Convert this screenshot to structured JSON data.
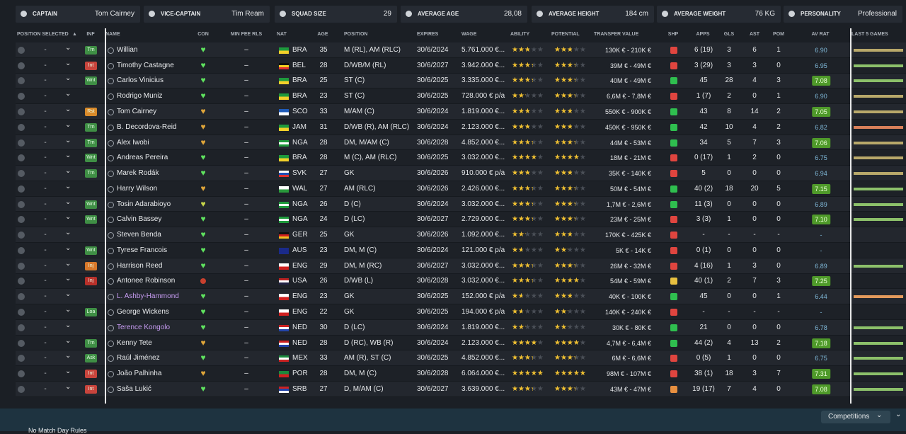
{
  "summary": [
    {
      "label": "CAPTAIN",
      "value": "Tom Cairney"
    },
    {
      "label": "VICE-CAPTAIN",
      "value": "Tim Ream"
    },
    {
      "label": "SQUAD SIZE",
      "value": "29"
    },
    {
      "label": "AVERAGE AGE",
      "value": "28,08"
    },
    {
      "label": "AVERAGE HEIGHT",
      "value": "184 cm"
    },
    {
      "label": "AVERAGE WEIGHT",
      "value": "76 KG"
    },
    {
      "label": "PERSONALITY",
      "value": "Professional"
    }
  ],
  "headers": [
    "POSITION SELECTED",
    "INF",
    "NAME",
    "CON",
    "MIN FEE RLS",
    "NAT",
    "AGE",
    "POSITION",
    "EXPIRES",
    "WAGE",
    "ABILITY",
    "POTENTIAL",
    "TRANSFER VALUE",
    "SHP",
    "APPS",
    "GLS",
    "AST",
    "POM",
    "AV RAT",
    "LAST 5 GAMES"
  ],
  "rows": [
    {
      "selected": "-",
      "inf": {
        "text": "Trn",
        "color": "#3f8f45"
      },
      "name": "Willian",
      "con": "#5fe35f",
      "min_fee": "–",
      "nat": "BRA",
      "age": 35,
      "position": "M (RL), AM (RLC)",
      "expires": "30/6/2024",
      "wage": "5.761.000 €...",
      "ability": 2.5,
      "potential": 2.5,
      "transfer_value": "130K € - 210K €",
      "shp": "#e0453f",
      "apps": "6 (19)",
      "gls": 3,
      "ast": 6,
      "pom": 1,
      "av_rat": "6.90",
      "form": "#b8a86a"
    },
    {
      "selected": "-",
      "inf": {
        "text": "Int",
        "color": "#c8443c"
      },
      "name": "Timothy Castagne",
      "con": "#5fe35f",
      "min_fee": "–",
      "nat": "BEL",
      "age": 28,
      "position": "D/WB/M (RL)",
      "expires": "30/6/2027",
      "wage": "3.942.000 €...",
      "ability": 3,
      "potential": 3,
      "transfer_value": "39M € - 49M €",
      "shp": "#e0453f",
      "apps": "3 (29)",
      "gls": 3,
      "ast": 3,
      "pom": 0,
      "av_rat": "6.95",
      "form": "#8cc06a"
    },
    {
      "selected": "-",
      "inf": {
        "text": "Wnt",
        "color": "#3f8f45"
      },
      "name": "Carlos Vinicius",
      "con": "#5fe35f",
      "min_fee": "–",
      "nat": "BRA",
      "age": 25,
      "position": "ST (C)",
      "expires": "30/6/2025",
      "wage": "3.335.000 €...",
      "ability": 3,
      "potential": 3,
      "transfer_value": "40M € - 49M €",
      "shp": "#2fbf4f",
      "apps": "45",
      "gls": 28,
      "ast": 4,
      "pom": 3,
      "av_rat": "7.08",
      "form": "#8cc06a"
    },
    {
      "selected": "-",
      "inf": null,
      "name": "Rodrigo Muniz",
      "con": "#5fe35f",
      "min_fee": "–",
      "nat": "BRA",
      "age": 23,
      "position": "ST (C)",
      "expires": "30/6/2025",
      "wage": "728.000 € p/a",
      "ability": 2,
      "potential": 3,
      "transfer_value": "6,6M € - 7,8M €",
      "shp": "#e0453f",
      "apps": "1 (7)",
      "gls": 2,
      "ast": 0,
      "pom": 1,
      "av_rat": "6.90",
      "form": "#b8a86a"
    },
    {
      "selected": "-",
      "inf": {
        "text": "Rst",
        "color": "#d88a2a"
      },
      "name": "Tom Cairney",
      "con": "#e0a63a",
      "min_fee": "–",
      "nat": "SCO",
      "age": 33,
      "position": "M/AM (C)",
      "expires": "30/6/2024",
      "wage": "1.819.000 €...",
      "ability": 2.5,
      "potential": 2.5,
      "transfer_value": "550K € - 900K €",
      "shp": "#2fbf4f",
      "apps": "43",
      "gls": 8,
      "ast": 14,
      "pom": 2,
      "av_rat": "7.05",
      "form": "#b8a86a"
    },
    {
      "selected": "-",
      "inf": {
        "text": "Trn",
        "color": "#3f8f45"
      },
      "name": "B. Decordova-Reid",
      "con": "#e0a63a",
      "min_fee": "–",
      "nat": "JAM",
      "age": 31,
      "position": "D/WB (R), AM (RLC)",
      "expires": "30/6/2024",
      "wage": "2.123.000 €...",
      "ability": 2.5,
      "potential": 2.5,
      "transfer_value": "450K € - 950K €",
      "shp": "#2fbf4f",
      "apps": "42",
      "gls": 10,
      "ast": 4,
      "pom": 2,
      "av_rat": "6.82",
      "form": "#d9805a"
    },
    {
      "selected": "-",
      "inf": {
        "text": "Trn",
        "color": "#3f8f45"
      },
      "name": "Alex Iwobi",
      "con": "#e0a63a",
      "min_fee": "–",
      "nat": "NGA",
      "age": 28,
      "position": "DM, M/AM (C)",
      "expires": "30/6/2028",
      "wage": "4.852.000 €...",
      "ability": 3,
      "potential": 3,
      "transfer_value": "44M € - 53M €",
      "shp": "#2fbf4f",
      "apps": "34",
      "gls": 5,
      "ast": 7,
      "pom": 3,
      "av_rat": "7.06",
      "form": "#b8a86a"
    },
    {
      "selected": "-",
      "inf": {
        "text": "Wnt",
        "color": "#3f8f45"
      },
      "name": "Andreas Pereira",
      "con": "#5fe35f",
      "min_fee": "–",
      "nat": "BRA",
      "age": 28,
      "position": "M (C), AM (RLC)",
      "expires": "30/6/2025",
      "wage": "3.032.000 €...",
      "ability": 3.5,
      "potential": 3.5,
      "transfer_value": "18M € - 21M €",
      "shp": "#e0453f",
      "apps": "0 (17)",
      "gls": 1,
      "ast": 2,
      "pom": 0,
      "av_rat": "6.75",
      "form": "#b8a86a"
    },
    {
      "selected": "-",
      "inf": {
        "text": "Trn",
        "color": "#3f8f45"
      },
      "name": "Marek Rodák",
      "con": "#5fe35f",
      "min_fee": "–",
      "nat": "SVK",
      "age": 27,
      "position": "GK",
      "expires": "30/6/2026",
      "wage": "910.000 € p/a",
      "ability": 2.5,
      "potential": 2.5,
      "transfer_value": "35K € - 140K €",
      "shp": "#e0453f",
      "apps": "5",
      "gls": 0,
      "ast": 0,
      "pom": 0,
      "av_rat": "6.94",
      "form": "#b8a86a"
    },
    {
      "selected": "-",
      "inf": null,
      "name": "Harry Wilson",
      "con": "#e0a63a",
      "min_fee": "–",
      "nat": "WAL",
      "age": 27,
      "position": "AM (RLC)",
      "expires": "30/6/2026",
      "wage": "2.426.000 €...",
      "ability": 3,
      "potential": 3,
      "transfer_value": "50M € - 54M €",
      "shp": "#2fbf4f",
      "apps": "40 (2)",
      "gls": 18,
      "ast": 20,
      "pom": 5,
      "av_rat": "7.15",
      "form": "#8cc06a"
    },
    {
      "selected": "-",
      "inf": {
        "text": "Wnt",
        "color": "#3f8f45"
      },
      "name": "Tosin Adarabioyo",
      "con": "#c9d84a",
      "min_fee": "–",
      "nat": "NGA",
      "age": 26,
      "position": "D (C)",
      "expires": "30/6/2024",
      "wage": "3.032.000 €...",
      "ability": 3,
      "potential": 3,
      "transfer_value": "1,7M € - 2,6M €",
      "shp": "#2fbf4f",
      "apps": "11 (3)",
      "gls": 0,
      "ast": 0,
      "pom": 0,
      "av_rat": "6.89",
      "form": "#8cc06a"
    },
    {
      "selected": "-",
      "inf": {
        "text": "Wnt",
        "color": "#3f8f45"
      },
      "name": "Calvin Bassey",
      "con": "#5fe35f",
      "min_fee": "–",
      "nat": "NGA",
      "age": 24,
      "position": "D (LC)",
      "expires": "30/6/2027",
      "wage": "2.729.000 €...",
      "ability": 3,
      "potential": 3,
      "transfer_value": "23M € - 25M €",
      "shp": "#e0453f",
      "apps": "3 (3)",
      "gls": 1,
      "ast": 0,
      "pom": 0,
      "av_rat": "7.10",
      "form": "#8cc06a"
    },
    {
      "selected": "-",
      "inf": null,
      "name": "Steven Benda",
      "con": "#5fe35f",
      "min_fee": "–",
      "nat": "GER",
      "age": 25,
      "position": "GK",
      "expires": "30/6/2026",
      "wage": "1.092.000 €...",
      "ability": 2,
      "potential": 2.5,
      "transfer_value": "170K € - 425K €",
      "shp": "#e0453f",
      "apps": "-",
      "gls": "-",
      "ast": "-",
      "pom": "-",
      "av_rat": "-",
      "form": null
    },
    {
      "selected": "-",
      "inf": {
        "text": "Wnt",
        "color": "#3f8f45"
      },
      "name": "Tyrese Francois",
      "con": "#5fe35f",
      "min_fee": "–",
      "nat": "AUS",
      "age": 23,
      "position": "DM, M (C)",
      "expires": "30/6/2024",
      "wage": "121.000 € p/a",
      "ability": 1.5,
      "potential": 2,
      "transfer_value": "5K € - 14K €",
      "shp": "#e0453f",
      "apps": "0 (1)",
      "gls": 0,
      "ast": 0,
      "pom": 0,
      "av_rat": "-",
      "form": null
    },
    {
      "selected": "-",
      "inf": {
        "text": "Inj",
        "color": "#d8782a"
      },
      "name": "Harrison Reed",
      "con": "#5fe35f",
      "min_fee": "–",
      "nat": "ENG",
      "age": 29,
      "position": "DM, M (RC)",
      "expires": "30/6/2027",
      "wage": "3.032.000 €...",
      "ability": 3,
      "potential": 3,
      "transfer_value": "26M € - 32M €",
      "shp": "#e0453f",
      "apps": "4 (16)",
      "gls": 1,
      "ast": 3,
      "pom": 0,
      "av_rat": "6.89",
      "form": "#8cc06a"
    },
    {
      "selected": "-",
      "inf": {
        "text": "Inj",
        "color": "#b8302a"
      },
      "name": "Antonee Robinson",
      "con": "#c8402e",
      "min_fee": "–",
      "nat": "USA",
      "age": 26,
      "position": "D/WB (L)",
      "expires": "30/6/2028",
      "wage": "3.032.000 €...",
      "ability": 3,
      "potential": 3.5,
      "transfer_value": "54M € - 59M €",
      "shp": "#e8c040",
      "apps": "40 (1)",
      "gls": 2,
      "ast": 7,
      "pom": 3,
      "av_rat": "7.25",
      "form": null
    },
    {
      "selected": "-",
      "inf": null,
      "name": "L. Ashby-Hammond",
      "name_color": "#c79cf2",
      "con": "#5fe35f",
      "min_fee": "–",
      "nat": "ENG",
      "age": 23,
      "position": "GK",
      "expires": "30/6/2025",
      "wage": "152.000 € p/a",
      "ability": 1.5,
      "potential": 2.5,
      "transfer_value": "40K € - 100K €",
      "shp": "#2fbf4f",
      "apps": "45",
      "gls": 0,
      "ast": 0,
      "pom": 1,
      "av_rat": "6.44",
      "form": "#e39a5c"
    },
    {
      "selected": "-",
      "inf": {
        "text": "Loa",
        "color": "#3f8f45"
      },
      "name": "George Wickens",
      "con": "#5fe35f",
      "min_fee": "–",
      "nat": "ENG",
      "age": 22,
      "position": "GK",
      "expires": "30/6/2025",
      "wage": "194.000 € p/a",
      "ability": 1.5,
      "potential": 2,
      "transfer_value": "140K € - 240K €",
      "shp": "#e0453f",
      "apps": "-",
      "gls": "-",
      "ast": "-",
      "pom": "-",
      "av_rat": "-",
      "form": null
    },
    {
      "selected": "-",
      "inf": null,
      "name": "Terence Kongolo",
      "name_color": "#c79cf2",
      "con": "#5fe35f",
      "min_fee": "–",
      "nat": "NED",
      "age": 30,
      "position": "D (LC)",
      "expires": "30/6/2024",
      "wage": "1.819.000 €...",
      "ability": 2,
      "potential": 2,
      "transfer_value": "30K € - 80K €",
      "shp": "#2fbf4f",
      "apps": "21",
      "gls": 0,
      "ast": 0,
      "pom": 0,
      "av_rat": "6.78",
      "form": "#8cc06a"
    },
    {
      "selected": "-",
      "inf": {
        "text": "Trn",
        "color": "#3f8f45"
      },
      "name": "Kenny Tete",
      "con": "#e0a63a",
      "min_fee": "–",
      "nat": "NED",
      "age": 28,
      "position": "D (RC), WB (R)",
      "expires": "30/6/2024",
      "wage": "2.123.000 €...",
      "ability": 3.5,
      "potential": 3.5,
      "transfer_value": "4,7M € - 6,4M €",
      "shp": "#2fbf4f",
      "apps": "44 (2)",
      "gls": 4,
      "ast": 13,
      "pom": 2,
      "av_rat": "7.18",
      "form": "#8cc06a"
    },
    {
      "selected": "-",
      "inf": {
        "text": "Ask",
        "color": "#3f8f45"
      },
      "name": "Raúl Jiménez",
      "con": "#5fe35f",
      "min_fee": "–",
      "nat": "MEX",
      "age": 33,
      "position": "AM (R), ST (C)",
      "expires": "30/6/2025",
      "wage": "4.852.000 €...",
      "ability": 3,
      "potential": 3,
      "transfer_value": "6M € - 6,6M €",
      "shp": "#e0453f",
      "apps": "0 (5)",
      "gls": 1,
      "ast": 0,
      "pom": 0,
      "av_rat": "6.75",
      "form": "#8cc06a"
    },
    {
      "selected": "-",
      "inf": {
        "text": "Int",
        "color": "#c8443c"
      },
      "name": "João Palhinha",
      "con": "#e0a63a",
      "min_fee": "–",
      "nat": "POR",
      "age": 28,
      "position": "DM, M (C)",
      "expires": "30/6/2028",
      "wage": "6.064.000 €...",
      "ability": 4.5,
      "potential": 4.5,
      "transfer_value": "98M € - 107M €",
      "shp": "#e0453f",
      "apps": "38 (1)",
      "gls": 18,
      "ast": 3,
      "pom": 7,
      "av_rat": "7.31",
      "form": "#8cc06a"
    },
    {
      "selected": "-",
      "inf": {
        "text": "Int",
        "color": "#c8443c"
      },
      "name": "Saša Lukić",
      "con": "#5fe35f",
      "min_fee": "–",
      "nat": "SRB",
      "age": 27,
      "position": "D, M/AM (C)",
      "expires": "30/6/2027",
      "wage": "3.639.000 €...",
      "ability": 3,
      "potential": 3,
      "transfer_value": "43M € - 47M €",
      "shp": "#e89040",
      "apps": "19 (17)",
      "gls": 7,
      "ast": 4,
      "pom": 0,
      "av_rat": "7.08",
      "form": "#8cc06a"
    }
  ],
  "footer": {
    "button": "Competitions",
    "note": "No Match Day Rules"
  }
}
